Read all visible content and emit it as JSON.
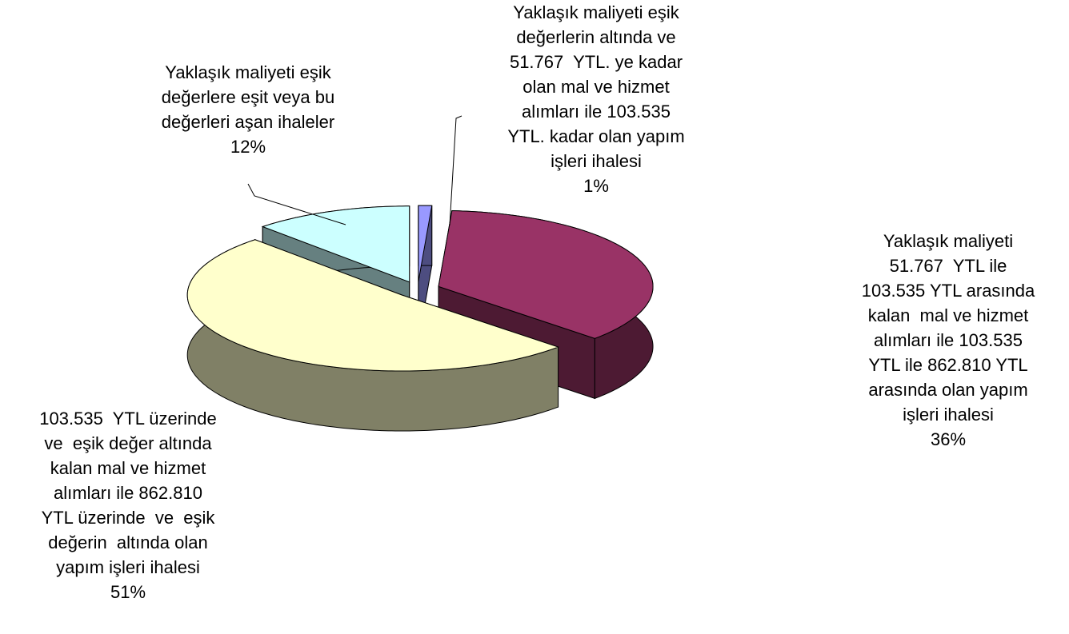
{
  "chart_data": {
    "type": "pie",
    "categories": [
      "Yaklaşık maliyeti eşik\ndeğerlerin altında ve\n51.767  YTL. ye kadar\nolan mal ve hizmet\nalımları ile 103.535\nYTL. kadar olan yapım\nişleri ihalesi",
      "Yaklaşık maliyeti\n51.767  YTL ile\n103.535 YTL arasında\nkalan  mal ve hizmet\nalımları ile 103.535\nYTL ile 862.810 YTL\narasında olan yapım\nişleri ihalesi",
      "103.535  YTL üzerinde\nve  eşik değer altında\nkalan mal ve hizmet\nalımları ile 862.810\nYTL üzerinde  ve  eşik\ndeğerin  altında olan\nyapım işleri ihalesi",
      "Yaklaşık maliyeti eşik\ndeğerlere eşit veya bu\ndeğerleri aşan ihaleler"
    ],
    "values": [
      1,
      36,
      51,
      12
    ],
    "value_labels": [
      "1%",
      "36%",
      "51%",
      "12%"
    ],
    "colors": [
      "#9999ff",
      "#993366",
      "#ffffcc",
      "#ccffff"
    ]
  }
}
